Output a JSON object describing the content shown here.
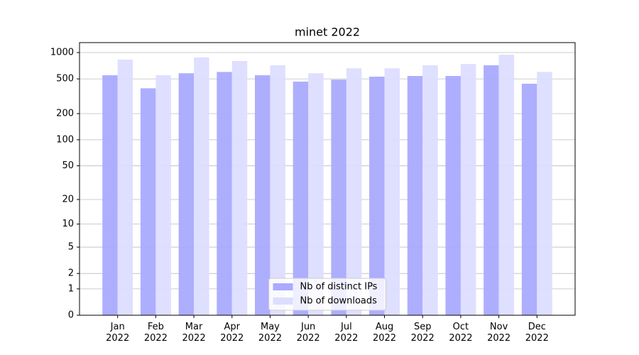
{
  "chart_data": {
    "type": "bar",
    "title": "minet 2022",
    "categories": [
      "Jan\n2022",
      "Feb\n2022",
      "Mar\n2022",
      "Apr\n2022",
      "May\n2022",
      "Jun\n2022",
      "Jul\n2022",
      "Aug\n2022",
      "Sep\n2022",
      "Oct\n2022",
      "Nov\n2022",
      "Dec\n2022"
    ],
    "series": [
      {
        "name": "Nb of distinct IPs",
        "color": "#aaaaff",
        "values": [
          550,
          390,
          580,
          600,
          550,
          465,
          490,
          530,
          540,
          540,
          715,
          440
        ]
      },
      {
        "name": "Nb of downloads",
        "color": "#ddddff",
        "values": [
          830,
          550,
          880,
          800,
          715,
          580,
          660,
          660,
          715,
          740,
          945,
          600
        ]
      }
    ],
    "yscale": "log1p",
    "ylim": [
      0,
      1300
    ],
    "yticks": [
      0,
      1,
      2,
      5,
      10,
      20,
      50,
      100,
      200,
      500,
      1000
    ],
    "grid": true,
    "legend": "lower center"
  }
}
